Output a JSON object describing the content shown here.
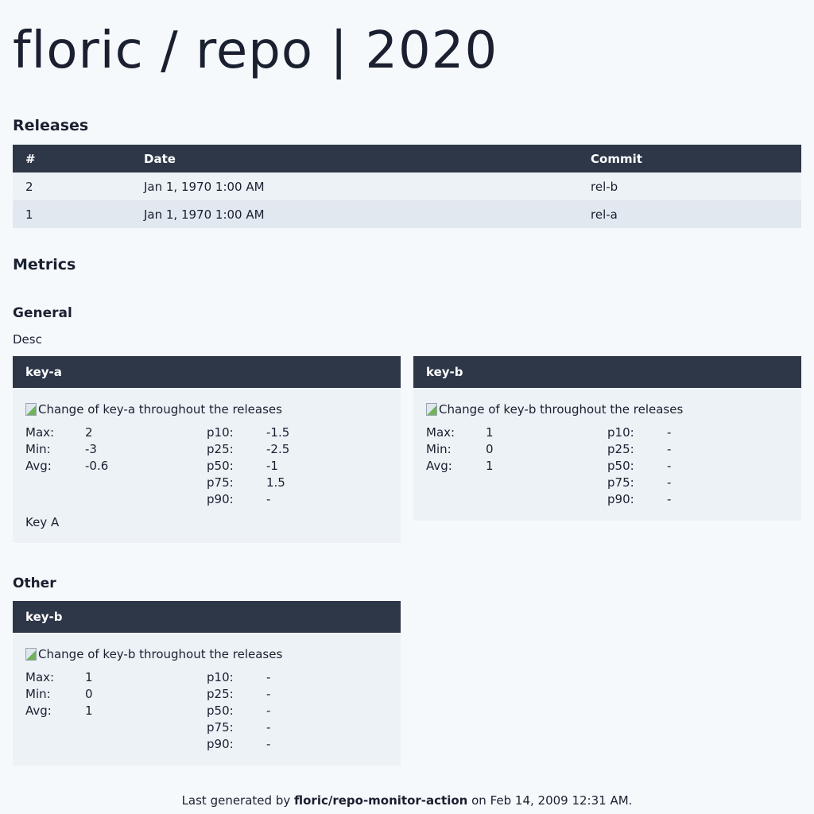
{
  "title": "floric / repo | 2020",
  "releases": {
    "heading": "Releases",
    "columns": [
      "#",
      "Date",
      "Commit"
    ],
    "rows": [
      {
        "num": "2",
        "date": "Jan 1, 1970 1:00 AM",
        "commit": "rel-b"
      },
      {
        "num": "1",
        "date": "Jan 1, 1970 1:00 AM",
        "commit": "rel-a"
      }
    ]
  },
  "metrics": {
    "heading": "Metrics",
    "stat_labels": {
      "max": "Max:",
      "min": "Min:",
      "avg": "Avg:",
      "p10": "p10:",
      "p25": "p25:",
      "p50": "p50:",
      "p75": "p75:",
      "p90": "p90:"
    },
    "general": {
      "heading": "General",
      "description": "Desc",
      "cards": [
        {
          "key": "key-a",
          "image_alt": "Change of key-a throughout the releases",
          "max": "2",
          "min": "-3",
          "avg": "-0.6",
          "p10": "-1.5",
          "p25": "-2.5",
          "p50": "-1",
          "p75": "1.5",
          "p90": "-",
          "description": "Key A"
        },
        {
          "key": "key-b",
          "image_alt": "Change of key-b throughout the releases",
          "max": "1",
          "min": "0",
          "avg": "1",
          "p10": "-",
          "p25": "-",
          "p50": "-",
          "p75": "-",
          "p90": "-"
        }
      ]
    },
    "other": {
      "heading": "Other",
      "cards": [
        {
          "key": "key-b",
          "image_alt": "Change of key-b throughout the releases",
          "max": "1",
          "min": "0",
          "avg": "1",
          "p10": "-",
          "p25": "-",
          "p50": "-",
          "p75": "-",
          "p90": "-"
        }
      ]
    }
  },
  "footer": {
    "prefix": "Last generated by",
    "tool": "floric/repo-monitor-action",
    "suffix": "on Feb 14, 2009 12:31 AM."
  }
}
